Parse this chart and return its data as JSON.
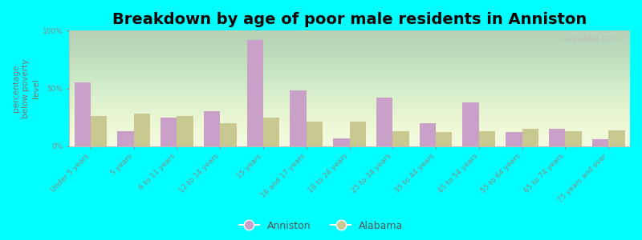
{
  "title": "Breakdown by age of poor male residents in Anniston",
  "ylabel": "percentage\nbelow poverty\nlevel",
  "categories": [
    "Under 5 years",
    "5 years",
    "6 to 11 years",
    "12 to 14 years",
    "15 years",
    "16 and 17 years",
    "18 to 24 years",
    "25 to 34 years",
    "35 to 44 years",
    "45 to 54 years",
    "55 to 64 years",
    "65 to 74 years",
    "75 years and over"
  ],
  "anniston_values": [
    55,
    13,
    25,
    30,
    92,
    48,
    7,
    42,
    20,
    38,
    12,
    15,
    6
  ],
  "alabama_values": [
    26,
    28,
    26,
    20,
    25,
    21,
    21,
    13,
    12,
    13,
    15,
    13,
    14
  ],
  "anniston_color": "#c8a0c8",
  "alabama_color": "#c8c890",
  "background_color": "#00ffff",
  "plot_bg_color": "#eef8e0",
  "ylim": [
    0,
    100
  ],
  "yticks": [
    0,
    50,
    100
  ],
  "ytick_labels": [
    "0%",
    "50%",
    "100%"
  ],
  "bar_width": 0.38,
  "legend_labels": [
    "Anniston",
    "Alabama"
  ],
  "watermark": "City-Data.com",
  "title_fontsize": 14,
  "axis_fontsize": 7.5,
  "tick_fontsize": 6.5
}
